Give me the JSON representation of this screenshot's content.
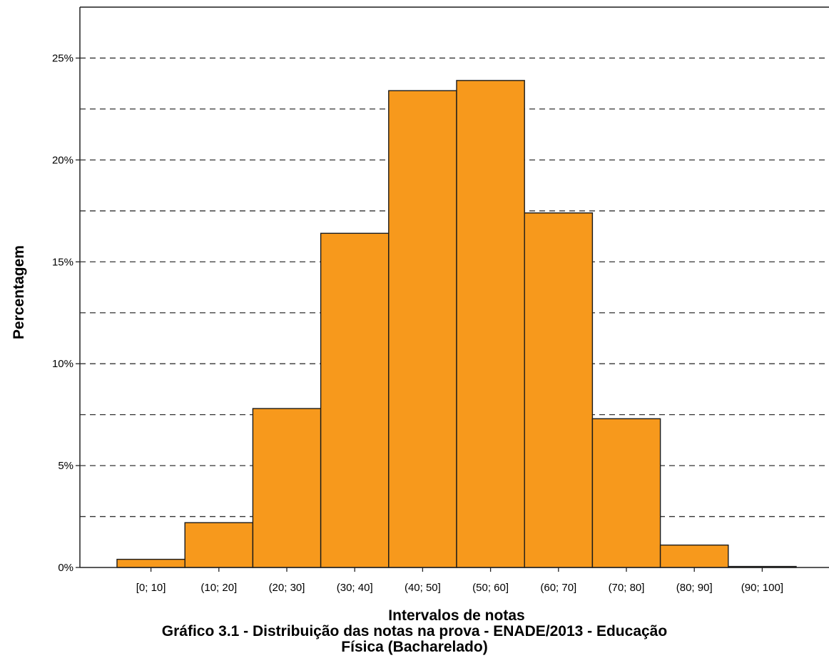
{
  "chart_data": {
    "type": "bar",
    "categories": [
      "[0; 10]",
      "(10; 20]",
      "(20; 30]",
      "(30; 40]",
      "(40; 50]",
      "(50; 60]",
      "(60; 70]",
      "(70; 80]",
      "(80; 90]",
      "(90; 100]"
    ],
    "values": [
      0.4,
      2.2,
      7.8,
      16.4,
      23.4,
      23.9,
      17.4,
      7.3,
      1.1,
      0.05
    ],
    "ylim": [
      0,
      27.5
    ],
    "yticks": [
      0,
      5,
      10,
      15,
      20,
      25
    ],
    "ytick_labels": [
      "0%",
      "5%",
      "10%",
      "15%",
      "20%",
      "25%"
    ],
    "grid_lines": [
      2.5,
      5,
      7.5,
      10,
      12.5,
      15,
      17.5,
      20,
      22.5,
      25,
      27.5
    ],
    "grid": true,
    "xlabel": "Intervalos de notas",
    "ylabel": "Percentagem",
    "bar_color": "#f7991c",
    "bar_edge_color": "#1a1a1a"
  },
  "caption": {
    "line1": "Gráfico 3.1 - Distribuição das notas na prova - ENADE/2013 - Educação",
    "line2": "Física (Bacharelado)"
  }
}
